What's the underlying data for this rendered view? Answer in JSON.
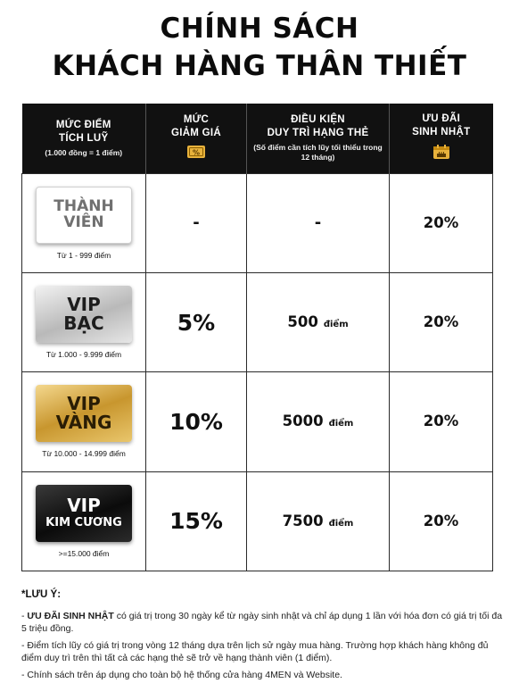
{
  "title": {
    "line1": "CHÍNH SÁCH",
    "line2": "KHÁCH HÀNG THÂN THIẾT"
  },
  "headers": [
    {
      "main1": "MỨC ĐIỂM",
      "main2": "TÍCH LUỸ",
      "sub": "(1.000 đồng = 1 điểm)"
    },
    {
      "main1": "MỨC",
      "main2": "GIẢM GIÁ",
      "icon": "discount-ticket-icon",
      "icon_text": "%"
    },
    {
      "main1": "ĐIỀU KIỆN",
      "main2": "DUY TRÌ HẠNG THẺ",
      "sub": "(Số điểm cần tích lũy tối thiểu trong 12 tháng)"
    },
    {
      "main1": "ƯU ĐÃI",
      "main2": "SINH NHẬT",
      "icon": "birthday-cake-calendar-icon"
    }
  ],
  "rows": [
    {
      "card_line1": "THÀNH",
      "card_line2": "VIÊN",
      "range": "Từ 1 - 999 điểm",
      "discount": "-",
      "maintain": "-",
      "maintain_unit": "",
      "birthday": "20%"
    },
    {
      "card_line1": "VIP",
      "card_line2": "BẠC",
      "range": "Từ 1.000 - 9.999 điểm",
      "discount": "5%",
      "maintain": "500",
      "maintain_unit": "điểm",
      "birthday": "20%"
    },
    {
      "card_line1": "VIP",
      "card_line2": "VÀNG",
      "range": "Từ 10.000 - 14.999 điểm",
      "discount": "10%",
      "maintain": "5000",
      "maintain_unit": "điểm",
      "birthday": "20%"
    },
    {
      "card_line1": "VIP",
      "card_line2": "KIM CƯƠNG",
      "range": ">=15.000 điểm",
      "discount": "15%",
      "maintain": "7500",
      "maintain_unit": "điểm",
      "birthday": "20%"
    }
  ],
  "notes": {
    "title": "*LƯU Ý:",
    "n1_lead": "- ",
    "n1_bold": "ƯU ĐÃI SINH NHẬT",
    "n1_rest": " có giá trị trong 30 ngày kể từ ngày sinh nhật và chỉ áp dụng 1 lần với hóa đơn có giá trị tối đa 5 triệu đồng.",
    "n2": "- Điểm tích lũy có giá trị trong vòng 12 tháng dựa trên lịch sử ngày mua hàng. Trường hợp khách hàng không đủ điểm duy trì trên thì tất cả các hạng thẻ sẽ trở về hạng thành viên (1 điểm).",
    "n3": "- Chính sách trên áp dụng cho toàn bộ hệ thống cửa hàng 4MEN và Website."
  },
  "colors": {
    "header_bg": "#111111",
    "gold": "#c8962e",
    "silver": "#b9b9b9",
    "diamond": "#0b0b0b"
  }
}
